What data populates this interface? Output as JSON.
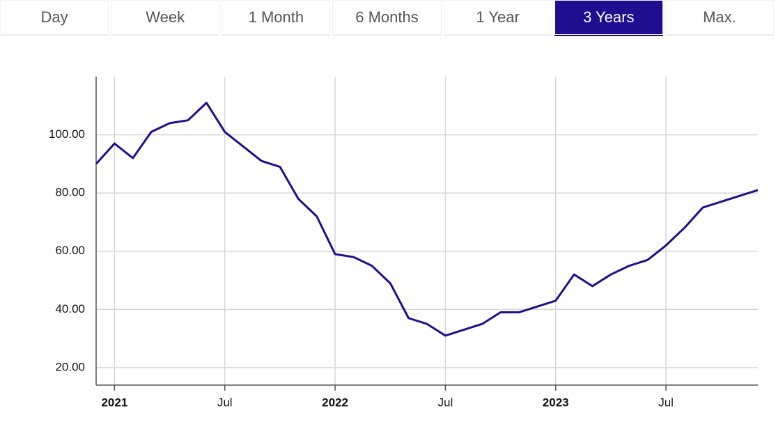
{
  "tabs": {
    "items": [
      "Day",
      "Week",
      "1 Month",
      "6 Months",
      "1 Year",
      "3 Years",
      "Max."
    ],
    "selected": 5
  },
  "chart_data": {
    "type": "line",
    "color": "#1f0e8f",
    "grid": true,
    "x": [
      "2020-12",
      "2021-01",
      "2021-02",
      "2021-03",
      "2021-04",
      "2021-05",
      "2021-06",
      "2021-07",
      "2021-08",
      "2021-09",
      "2021-10",
      "2021-11",
      "2021-12",
      "2022-01",
      "2022-02",
      "2022-03",
      "2022-04",
      "2022-05",
      "2022-06",
      "2022-07",
      "2022-08",
      "2022-09",
      "2022-10",
      "2022-11",
      "2022-12",
      "2023-01",
      "2023-02",
      "2023-03",
      "2023-04",
      "2023-05",
      "2023-06",
      "2023-07",
      "2023-08",
      "2023-09",
      "2023-10",
      "2023-11",
      "2023-12"
    ],
    "values": [
      90,
      97,
      92,
      101,
      104,
      105,
      111,
      101,
      96,
      91,
      89,
      78,
      72,
      59,
      58,
      55,
      49,
      37,
      35,
      31,
      33,
      35,
      39,
      39,
      41,
      43,
      52,
      48,
      52,
      55,
      57,
      62,
      68,
      75,
      77,
      79,
      81
    ],
    "xlim": [
      "2020-12",
      "2023-12"
    ],
    "xticks": [
      {
        "value": "2021-01",
        "label": "2021"
      },
      {
        "value": "2021-07",
        "label": "Jul"
      },
      {
        "value": "2022-01",
        "label": "2022"
      },
      {
        "value": "2022-07",
        "label": "Jul"
      },
      {
        "value": "2023-01",
        "label": "2023"
      },
      {
        "value": "2023-07",
        "label": "Jul"
      }
    ],
    "ylim": [
      14,
      120
    ],
    "yticks": [
      {
        "value": 20,
        "label": "20.00"
      },
      {
        "value": 40,
        "label": "40.00"
      },
      {
        "value": 60,
        "label": "60.00"
      },
      {
        "value": 80,
        "label": "80.00"
      },
      {
        "value": 100,
        "label": "100.00"
      }
    ]
  }
}
